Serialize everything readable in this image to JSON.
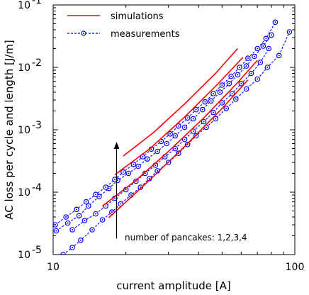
{
  "chart_data": {
    "type": "line",
    "xlabel": "current amplitude [A]",
    "ylabel": "AC loss per cycle and length [J/m]",
    "x_scale": "log",
    "y_scale": "log",
    "xlim": [
      10,
      100
    ],
    "ylim": [
      1e-05,
      0.1
    ],
    "x_ticks": [
      10,
      100
    ],
    "x_tick_labels": [
      "10",
      "100"
    ],
    "y_ticks": [
      1e-05,
      0.0001,
      0.001,
      0.01,
      0.1
    ],
    "y_tick_labels": [
      {
        "base": "10",
        "exp": "-5"
      },
      {
        "base": "10",
        "exp": "-4"
      },
      {
        "base": "10",
        "exp": "-3"
      },
      {
        "base": "10",
        "exp": "-2"
      },
      {
        "base": "10",
        "exp": "-1"
      }
    ],
    "grid": false,
    "legend": {
      "position": "top-left",
      "entries": [
        {
          "label": "simulations",
          "color": "#ff0000",
          "style": "solid"
        },
        {
          "label": "measurements",
          "color": "#0000ff",
          "style": "dashed-circle-markers"
        }
      ]
    },
    "annotation": {
      "text": "number of pancakes: 1,2,3,4",
      "arrow_from": {
        "x": 18.3,
        "y": 1.8e-05
      },
      "arrow_to": {
        "x": 18.3,
        "y": 0.00056
      }
    },
    "series": [
      {
        "kind": "measurements",
        "color": "#0000ff",
        "points": [
          [
            11.0,
            1e-05
          ],
          [
            12.0,
            1.3e-05
          ],
          [
            13.0,
            1.7e-05
          ],
          [
            14.5,
            2.5e-05
          ],
          [
            16.0,
            3.6e-05
          ],
          [
            17.5,
            4.8e-05
          ],
          [
            19.0,
            6.5e-05
          ],
          [
            21.0,
            9e-05
          ],
          [
            23.0,
            0.00012
          ],
          [
            25.0,
            0.000165
          ],
          [
            27.0,
            0.00022
          ],
          [
            30.0,
            0.0003
          ],
          [
            33.0,
            0.00042
          ],
          [
            36.0,
            0.00058
          ],
          [
            39.0,
            0.0008
          ],
          [
            43.0,
            0.0011
          ],
          [
            47.0,
            0.0015
          ],
          [
            52.0,
            0.0022
          ],
          [
            57.0,
            0.0031
          ],
          [
            63.0,
            0.0045
          ],
          [
            70.0,
            0.0065
          ],
          [
            77.0,
            0.01
          ],
          [
            86.0,
            0.0155
          ],
          [
            95.0,
            0.037
          ]
        ]
      },
      {
        "kind": "measurements",
        "color": "#0000ff",
        "points": [
          [
            12.0,
            2.5e-05
          ],
          [
            13.5,
            3.5e-05
          ],
          [
            15.0,
            4.5e-05
          ],
          [
            16.5,
            6e-05
          ],
          [
            18.0,
            8e-05
          ],
          [
            20.0,
            0.00011
          ],
          [
            22.0,
            0.00015
          ],
          [
            24.0,
            0.0002
          ],
          [
            26.5,
            0.00027
          ],
          [
            29.0,
            0.00037
          ],
          [
            32.0,
            0.0005
          ],
          [
            35.0,
            0.0007
          ],
          [
            38.0,
            0.00095
          ],
          [
            42.0,
            0.00135
          ],
          [
            46.0,
            0.0019
          ],
          [
            50.0,
            0.0027
          ],
          [
            55.0,
            0.0038
          ],
          [
            60.0,
            0.0055
          ],
          [
            66.0,
            0.008
          ],
          [
            72.0,
            0.012
          ],
          [
            78.0,
            0.02
          ]
        ]
      },
      {
        "kind": "measurements",
        "color": "#0000ff",
        "points": [
          [
            10.3,
            2.4e-05
          ],
          [
            11.5,
            3.2e-05
          ],
          [
            12.8,
            4.2e-05
          ],
          [
            14.0,
            6e-05
          ],
          [
            15.5,
            8.5e-05
          ],
          [
            17.0,
            0.000115
          ],
          [
            18.5,
            0.000155
          ],
          [
            20.5,
            0.0002
          ],
          [
            22.5,
            0.00026
          ],
          [
            24.5,
            0.00034
          ],
          [
            27.0,
            0.00045
          ],
          [
            29.5,
            0.0006
          ],
          [
            32.0,
            0.0008
          ],
          [
            35.0,
            0.0011
          ],
          [
            38.0,
            0.0015
          ],
          [
            41.5,
            0.0021
          ],
          [
            45.0,
            0.0029
          ],
          [
            49.0,
            0.004
          ],
          [
            53.5,
            0.0055
          ],
          [
            58.0,
            0.0076
          ],
          [
            63.0,
            0.0105
          ],
          [
            68.0,
            0.015
          ],
          [
            74.0,
            0.022
          ],
          [
            80.0,
            0.033
          ]
        ]
      },
      {
        "kind": "measurements",
        "color": "#0000ff",
        "points": [
          [
            10.2,
            3e-05
          ],
          [
            11.3,
            4e-05
          ],
          [
            12.5,
            5.3e-05
          ],
          [
            13.7,
            7e-05
          ],
          [
            15.0,
            9.2e-05
          ],
          [
            16.5,
            0.00012
          ],
          [
            18.0,
            0.00016
          ],
          [
            19.5,
            0.00021
          ],
          [
            21.5,
            0.00028
          ],
          [
            23.5,
            0.00037
          ],
          [
            25.5,
            0.00049
          ],
          [
            28.0,
            0.00065
          ],
          [
            30.5,
            0.00086
          ],
          [
            33.0,
            0.00115
          ],
          [
            36.0,
            0.00155
          ],
          [
            39.0,
            0.0021
          ],
          [
            42.5,
            0.0028
          ],
          [
            46.0,
            0.0038
          ],
          [
            50.0,
            0.0052
          ],
          [
            54.5,
            0.0072
          ],
          [
            59.0,
            0.01
          ],
          [
            64.0,
            0.014
          ],
          [
            70.0,
            0.02
          ],
          [
            76.0,
            0.029
          ],
          [
            83.0,
            0.053
          ]
        ]
      },
      {
        "kind": "simulations",
        "color": "#ff0000",
        "points": [
          [
            17.0,
            3.9e-05
          ],
          [
            25.0,
            0.000155
          ],
          [
            35.0,
            0.00054
          ],
          [
            50.0,
            0.0022
          ],
          [
            64.0,
            0.0063
          ]
        ]
      },
      {
        "kind": "simulations",
        "color": "#ff0000",
        "points": [
          [
            16.0,
            6e-05
          ],
          [
            22.0,
            0.000155
          ],
          [
            30.0,
            0.00045
          ],
          [
            42.0,
            0.00155
          ],
          [
            58.0,
            0.0057
          ],
          [
            70.0,
            0.013
          ]
        ]
      },
      {
        "kind": "simulations",
        "color": "#ff0000",
        "points": [
          [
            18.0,
            0.00019
          ],
          [
            25.0,
            0.00049
          ],
          [
            35.0,
            0.0016
          ],
          [
            48.0,
            0.0054
          ],
          [
            61.0,
            0.0145
          ]
        ]
      },
      {
        "kind": "simulations",
        "color": "#ff0000",
        "points": [
          [
            19.5,
            0.00038
          ],
          [
            26.0,
            0.0009
          ],
          [
            35.0,
            0.0026
          ],
          [
            47.0,
            0.008
          ],
          [
            58.0,
            0.02
          ]
        ]
      }
    ]
  }
}
